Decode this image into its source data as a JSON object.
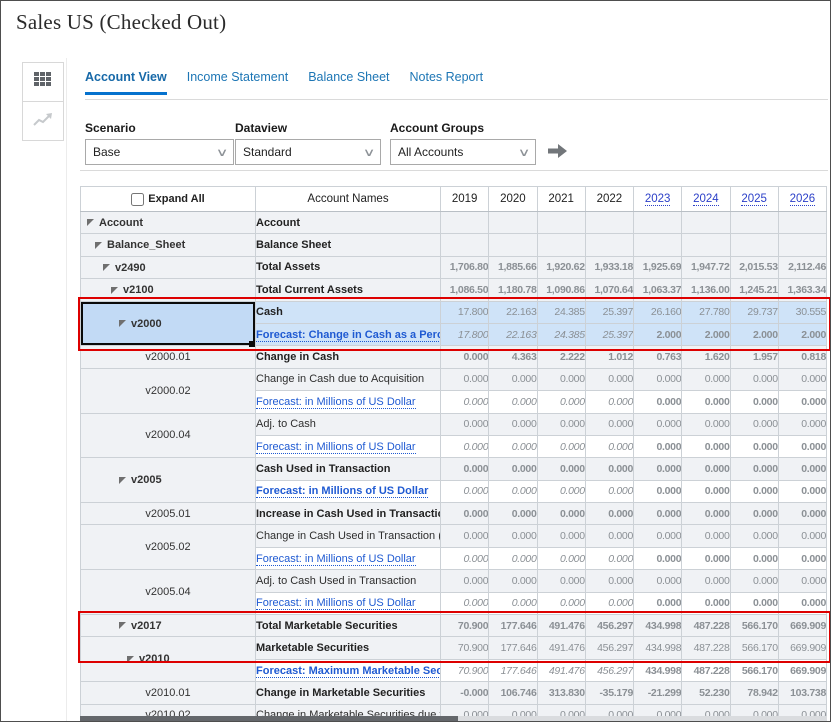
{
  "window": {
    "title": "Sales US (Checked Out)"
  },
  "sidebar": {
    "buttons": [
      {
        "name": "grid-view",
        "icon": "grid-icon",
        "active": true
      },
      {
        "name": "chart-view",
        "icon": "chart-icon",
        "active": false
      }
    ]
  },
  "tabs": [
    {
      "label": "Account View",
      "active": true
    },
    {
      "label": "Income Statement",
      "active": false
    },
    {
      "label": "Balance Sheet",
      "active": false
    },
    {
      "label": "Notes Report",
      "active": false
    }
  ],
  "filters": {
    "scenario": {
      "label": "Scenario",
      "value": "Base"
    },
    "dataview": {
      "label": "Dataview",
      "value": "Standard"
    },
    "account_groups": {
      "label": "Account Groups",
      "value": "All Accounts"
    },
    "go_icon": "go-arrow-icon"
  },
  "colors": {
    "accent_blue": "#0572ce",
    "selection_blue": "#cfe3f8",
    "selected_cell_blue": "#c2daf5",
    "annotation_red": "#dd0000",
    "forecast_green": "#4ecb4e",
    "negative_red": "#ef1d22",
    "link_blue": "#1f5ad2"
  },
  "table": {
    "expand_all_label": "Expand All",
    "account_names_header": "Account Names",
    "years": [
      {
        "label": "2019",
        "link": false
      },
      {
        "label": "2020",
        "link": false
      },
      {
        "label": "2021",
        "link": false
      },
      {
        "label": "2022",
        "link": false
      },
      {
        "label": "2023",
        "link": true
      },
      {
        "label": "2024",
        "link": true
      },
      {
        "label": "2025",
        "link": true
      },
      {
        "label": "2026",
        "link": true
      }
    ],
    "rows": [
      {
        "code": "Account",
        "level": 0,
        "tri": true,
        "name": "Account",
        "nameBold": true,
        "values": [
          "",
          "",
          "",
          "",
          "",
          "",
          "",
          ""
        ],
        "vstyle": [
          "g",
          "g",
          "g",
          "g",
          "g",
          "g",
          "g",
          "g"
        ]
      },
      {
        "code": "Balance_Sheet",
        "level": 1,
        "tri": true,
        "name": "Balance Sheet",
        "nameBold": true,
        "values": [
          "",
          "",
          "",
          "",
          "",
          "",
          "",
          ""
        ],
        "vstyle": [
          "g",
          "g",
          "g",
          "g",
          "g",
          "g",
          "g",
          "g"
        ]
      },
      {
        "code": "v2490",
        "level": 2,
        "tri": true,
        "name": "Total Assets",
        "nameBold": true,
        "values": [
          "1,706.80",
          "1,885.66",
          "1,920.62",
          "1,933.18",
          "1,925.69",
          "1,947.72",
          "2,015.53",
          "2,112.46"
        ],
        "vstyle": [
          "b",
          "b",
          "b",
          "b",
          "b",
          "b",
          "b",
          "b"
        ]
      },
      {
        "code": "v2100",
        "level": 3,
        "tri": true,
        "name": "Total Current Assets",
        "nameBold": true,
        "values": [
          "1,086.50",
          "1,180.78",
          "1,090.86",
          "1,070.64",
          "1,063.37",
          "1,136.00",
          "1,245.21",
          "1,363.34"
        ],
        "vstyle": [
          "b",
          "b",
          "b",
          "b",
          "b",
          "b",
          "b",
          "b"
        ]
      },
      {
        "code": "v2000",
        "level": 4,
        "tri": true,
        "span": 2,
        "selected": true,
        "highlight": true,
        "name": "Cash",
        "nameBold": true,
        "values": [
          "17.800",
          "22.163",
          "24.385",
          "25.397",
          "26.160",
          "27.780",
          "29.737",
          "30.555"
        ],
        "vstyle": [
          "g",
          "g",
          "g",
          "g",
          "g",
          "g",
          "g",
          "g"
        ]
      },
      {
        "forecast": true,
        "highlight": true,
        "name": "Forecast: Change in Cash as a Perce",
        "linkBold": true,
        "values": [
          "17.800",
          "22.163",
          "24.385",
          "25.397",
          "2.000",
          "2.000",
          "2.000",
          "2.000"
        ],
        "vstyle": [
          "gr",
          "gr",
          "gr",
          "gr",
          "b",
          "b",
          "b",
          "b"
        ]
      },
      {
        "code": "v2000.01",
        "leaf": true,
        "name": "Change in Cash",
        "nameBold": true,
        "values": [
          "0.000",
          "4.363",
          "2.222",
          "1.012",
          "0.763",
          "1.620",
          "1.957",
          "0.818"
        ],
        "vstyle": [
          "b",
          "b",
          "b",
          "b",
          "b",
          "b",
          "b",
          "b"
        ]
      },
      {
        "code": "v2000.02",
        "leaf": true,
        "span": 2,
        "name": "Change in Cash due to Acquisition",
        "values": [
          "0.000",
          "0.000",
          "0.000",
          "0.000",
          "0.000",
          "0.000",
          "0.000",
          "0.000"
        ],
        "vstyle": [
          "g",
          "g",
          "g",
          "g",
          "g",
          "g",
          "g",
          "g"
        ]
      },
      {
        "forecast": true,
        "name": "Forecast: in Millions of US Dollar",
        "values": [
          "0.000",
          "0.000",
          "0.000",
          "0.000",
          "0.000",
          "0.000",
          "0.000",
          "0.000"
        ],
        "vstyle": [
          "gr",
          "gr",
          "gr",
          "gr",
          "b",
          "b",
          "b",
          "b"
        ]
      },
      {
        "code": "v2000.04",
        "leaf": true,
        "span": 2,
        "name": "Adj. to Cash",
        "values": [
          "0.000",
          "0.000",
          "0.000",
          "0.000",
          "0.000",
          "0.000",
          "0.000",
          "0.000"
        ],
        "vstyle": [
          "g",
          "g",
          "g",
          "g",
          "g",
          "g",
          "g",
          "g"
        ]
      },
      {
        "forecast": true,
        "name": "Forecast: in Millions of US Dollar",
        "values": [
          "0.000",
          "0.000",
          "0.000",
          "0.000",
          "0.000",
          "0.000",
          "0.000",
          "0.000"
        ],
        "vstyle": [
          "gr",
          "gr",
          "gr",
          "gr",
          "b",
          "b",
          "b",
          "b"
        ]
      },
      {
        "code": "v2005",
        "level": 4,
        "tri": true,
        "span": 2,
        "name": "Cash Used in Transaction",
        "nameBold": true,
        "values": [
          "0.000",
          "0.000",
          "0.000",
          "0.000",
          "0.000",
          "0.000",
          "0.000",
          "0.000"
        ],
        "vstyle": [
          "b",
          "b",
          "b",
          "b",
          "b",
          "b",
          "b",
          "b"
        ]
      },
      {
        "forecast": true,
        "name": "Forecast: in Millions of US Dollar",
        "linkBold": true,
        "values": [
          "0.000",
          "0.000",
          "0.000",
          "0.000",
          "0.000",
          "0.000",
          "0.000",
          "0.000"
        ],
        "vstyle": [
          "gr",
          "gr",
          "gr",
          "gr",
          "b",
          "b",
          "b",
          "b"
        ]
      },
      {
        "code": "v2005.01",
        "leaf": true,
        "name": "Increase in Cash Used in Transaction",
        "nameBold": true,
        "values": [
          "0.000",
          "0.000",
          "0.000",
          "0.000",
          "0.000",
          "0.000",
          "0.000",
          "0.000"
        ],
        "vstyle": [
          "b",
          "b",
          "b",
          "b",
          "b",
          "b",
          "b",
          "b"
        ]
      },
      {
        "code": "v2005.02",
        "leaf": true,
        "span": 2,
        "name": "Change in Cash Used in Transaction (",
        "values": [
          "0.000",
          "0.000",
          "0.000",
          "0.000",
          "0.000",
          "0.000",
          "0.000",
          "0.000"
        ],
        "vstyle": [
          "g",
          "g",
          "g",
          "g",
          "g",
          "g",
          "g",
          "g"
        ]
      },
      {
        "forecast": true,
        "name": "Forecast: in Millions of US Dollar",
        "values": [
          "0.000",
          "0.000",
          "0.000",
          "0.000",
          "0.000",
          "0.000",
          "0.000",
          "0.000"
        ],
        "vstyle": [
          "gr",
          "gr",
          "gr",
          "gr",
          "b",
          "b",
          "b",
          "b"
        ]
      },
      {
        "code": "v2005.04",
        "leaf": true,
        "span": 2,
        "name": "Adj. to Cash Used in Transaction",
        "values": [
          "0.000",
          "0.000",
          "0.000",
          "0.000",
          "0.000",
          "0.000",
          "0.000",
          "0.000"
        ],
        "vstyle": [
          "g",
          "g",
          "g",
          "g",
          "g",
          "g",
          "g",
          "g"
        ]
      },
      {
        "forecast": true,
        "name": "Forecast: in Millions of US Dollar",
        "values": [
          "0.000",
          "0.000",
          "0.000",
          "0.000",
          "0.000",
          "0.000",
          "0.000",
          "0.000"
        ],
        "vstyle": [
          "gr",
          "gr",
          "gr",
          "gr",
          "b",
          "b",
          "b",
          "b"
        ]
      },
      {
        "code": "v2017",
        "level": 4,
        "tri": true,
        "name": "Total Marketable Securities",
        "nameBold": true,
        "values": [
          "70.900",
          "177.646",
          "491.476",
          "456.297",
          "434.998",
          "487.228",
          "566.170",
          "669.909"
        ],
        "vstyle": [
          "b",
          "b",
          "b",
          "b",
          "b",
          "b",
          "b",
          "b"
        ]
      },
      {
        "code": "v2010",
        "level": 5,
        "tri": true,
        "span": 2,
        "name": "Marketable Securities",
        "nameBold": true,
        "values": [
          "70.900",
          "177.646",
          "491.476",
          "456.297",
          "434.998",
          "487.228",
          "566.170",
          "669.909"
        ],
        "vstyle": [
          "g",
          "g",
          "g",
          "g",
          "g",
          "g",
          "g",
          "g"
        ]
      },
      {
        "forecast": true,
        "name": "Forecast: Maximum Marketable Secu",
        "linkBold": true,
        "values": [
          "70.900",
          "177.646",
          "491.476",
          "456.297",
          "434.998",
          "487.228",
          "566.170",
          "669.909"
        ],
        "vstyle": [
          "gr",
          "gr",
          "gr",
          "gr",
          "b",
          "b",
          "b",
          "b"
        ]
      },
      {
        "code": "v2010.01",
        "leaf": true,
        "name": "Change in Marketable Securities",
        "nameBold": true,
        "values": [
          "-0.000",
          "106.746",
          "313.830",
          "-35.179",
          "-21.299",
          "52.230",
          "78.942",
          "103.738"
        ],
        "vstyle": [
          "r",
          "b",
          "b",
          "r",
          "r",
          "b",
          "b",
          "b"
        ]
      },
      {
        "code": "v2010.02",
        "leaf": true,
        "name": "Change in Marketable Securities due t",
        "values": [
          "0.000",
          "0.000",
          "0.000",
          "0.000",
          "0.000",
          "0.000",
          "0.000",
          "0.000"
        ],
        "vstyle": [
          "g",
          "g",
          "g",
          "g",
          "g",
          "g",
          "g",
          "g"
        ]
      }
    ]
  }
}
